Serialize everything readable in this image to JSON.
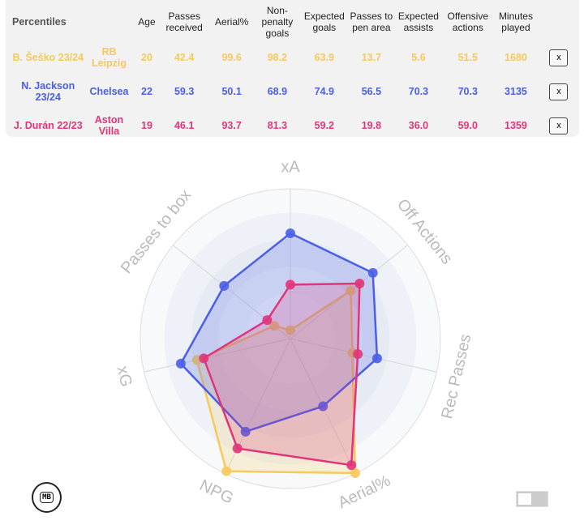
{
  "table": {
    "headers": [
      "Percentiles",
      "",
      "Age",
      "Passes received",
      "Aerial%",
      "Non-penalty goals",
      "Expected goals",
      "Passes to pen area",
      "Expected assists",
      "Offensive actions",
      "Minutes played"
    ],
    "remove_label": "x",
    "rows": [
      {
        "player": "B. Šeško 23/24",
        "team": "RB Leipzig",
        "color": "#f7c95c",
        "values": [
          "20",
          "42.4",
          "99.6",
          "98.2",
          "63.9",
          "13.7",
          "5.6",
          "51.5",
          "1680"
        ]
      },
      {
        "player": "N. Jackson 23/24",
        "team": "Chelsea",
        "color": "#4a5ee8",
        "values": [
          "22",
          "59.3",
          "50.1",
          "68.9",
          "74.9",
          "56.5",
          "70.3",
          "70.3",
          "3135"
        ]
      },
      {
        "player": "J. Durán 22/23",
        "team": "Aston Villa",
        "color": "#e0357a",
        "values": [
          "19",
          "46.1",
          "93.7",
          "81.3",
          "59.2",
          "19.8",
          "36.0",
          "59.0",
          "1359"
        ]
      }
    ]
  },
  "chart_data": {
    "type": "radar",
    "axes": [
      "xA",
      "Off Actions",
      "Rec Passes",
      "Aerial%",
      "NPG",
      "xG",
      "Passes to box"
    ],
    "range": [
      0,
      100
    ],
    "series": [
      {
        "name": "B. Šeško 23/24",
        "color": "#f7c95c",
        "values": [
          5.6,
          51.5,
          42.4,
          99.6,
          98.2,
          63.9,
          13.7
        ]
      },
      {
        "name": "N. Jackson 23/24",
        "color": "#4a5ee8",
        "values": [
          70.3,
          70.3,
          59.3,
          50.1,
          68.9,
          74.9,
          56.5
        ]
      },
      {
        "name": "J. Durán 22/23",
        "color": "#e0357a",
        "values": [
          36.0,
          59.0,
          46.1,
          93.7,
          81.3,
          59.2,
          19.8
        ]
      }
    ]
  },
  "logo": {
    "text": "MB"
  }
}
